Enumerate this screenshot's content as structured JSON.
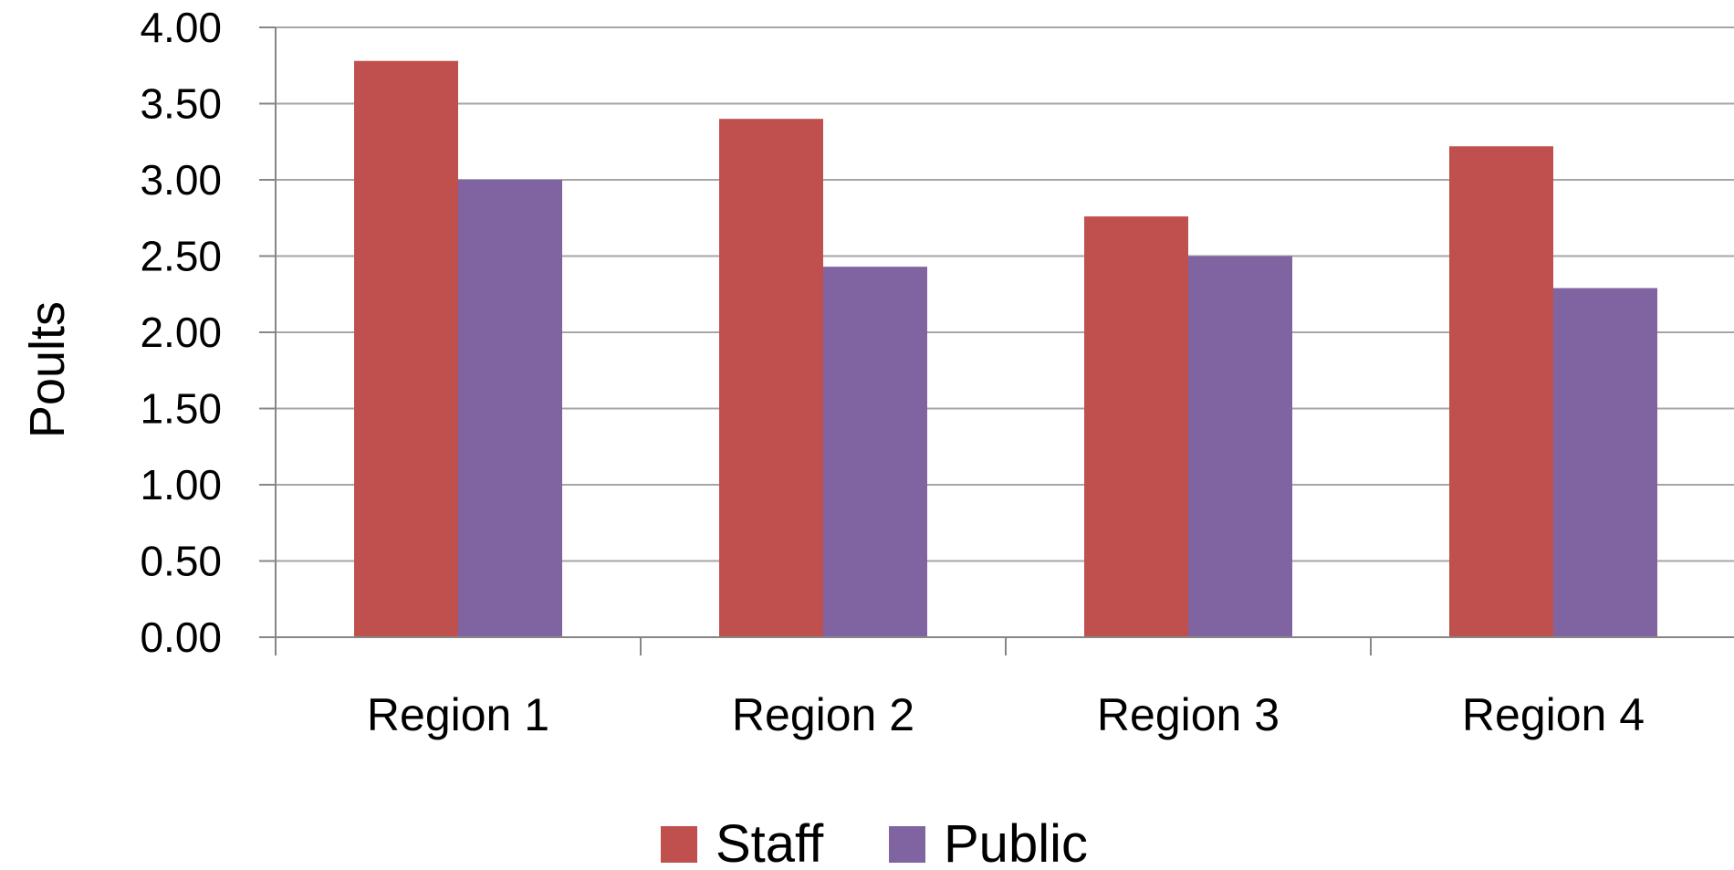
{
  "chart_data": {
    "type": "bar",
    "categories": [
      "Region 1",
      "Region 2",
      "Region 3",
      "Region 4"
    ],
    "series": [
      {
        "name": "Staff",
        "values": [
          3.78,
          3.4,
          2.76,
          3.22
        ],
        "color": "#C0504D"
      },
      {
        "name": "Public",
        "values": [
          3.0,
          2.43,
          2.5,
          2.29
        ],
        "color": "#8064A2"
      }
    ],
    "xlabel": "",
    "ylabel": "Poults",
    "ylim": [
      0,
      4
    ],
    "yticks": [
      "0.00",
      "0.50",
      "1.00",
      "1.50",
      "2.00",
      "2.50",
      "3.00",
      "3.50",
      "4.00"
    ],
    "grid": true,
    "legend_position": "bottom",
    "gridline_color": "#A6A6A6",
    "axis_color": "#868686"
  }
}
